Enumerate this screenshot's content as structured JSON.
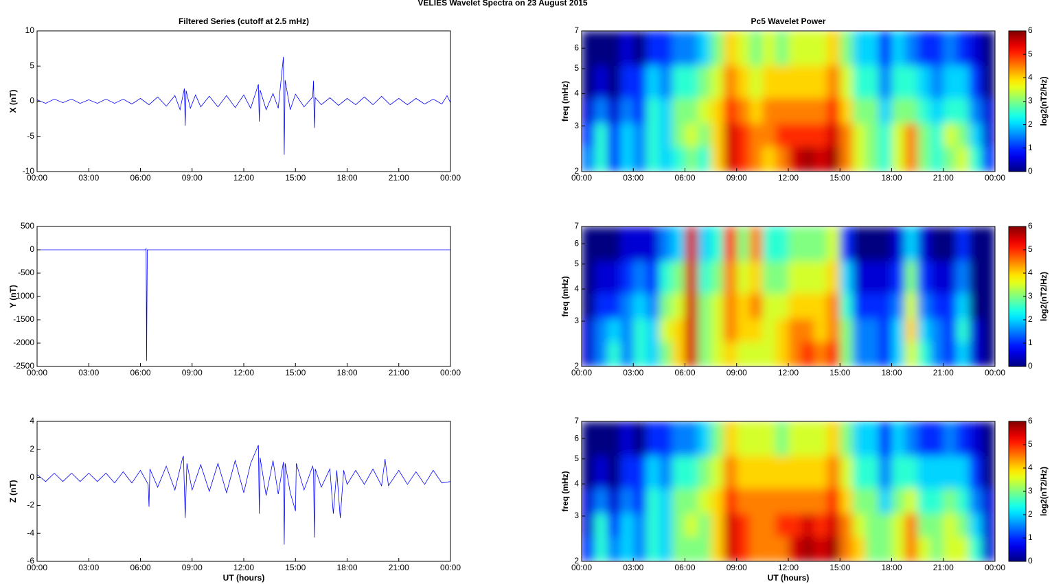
{
  "title": "VELIES Wavelet Spectra on 23 August    2015",
  "chart_data": [
    {
      "type": "line",
      "title": "Filtered Series (cutoff at 2.5 mHz)",
      "y_label": "X (nT)",
      "color": "#0000ff",
      "x": [
        0,
        0.5,
        1,
        1.5,
        2,
        2.5,
        3,
        3.5,
        4,
        4.5,
        5,
        5.5,
        6,
        6.5,
        7,
        7.5,
        8,
        8.3,
        8.55,
        8.6,
        8.65,
        8.9,
        9.2,
        9.5,
        10,
        10.5,
        11,
        11.5,
        12,
        12.4,
        12.85,
        12.9,
        12.95,
        13.3,
        13.7,
        14,
        14.3,
        14.35,
        14.4,
        14.7,
        15,
        15.5,
        16,
        16.05,
        16.1,
        16.15,
        16.5,
        17,
        17.5,
        18,
        18.5,
        19,
        19.5,
        20,
        20.5,
        21,
        21.5,
        22,
        22.5,
        23,
        23.5,
        23.8,
        24
      ],
      "values": [
        0.2,
        -0.3,
        0.3,
        -0.2,
        0.3,
        -0.3,
        0.2,
        -0.3,
        0.3,
        -0.3,
        0.3,
        -0.4,
        0.4,
        -0.5,
        0.6,
        -0.7,
        0.8,
        -1.2,
        1.8,
        -3.5,
        1.5,
        -1.0,
        0.9,
        -0.8,
        0.7,
        -0.8,
        0.8,
        -0.9,
        0.9,
        -1.0,
        2.4,
        -2.9,
        1.6,
        -1.2,
        1.1,
        -1.0,
        6.3,
        -7.6,
        3.0,
        -1.2,
        1.0,
        -0.8,
        0.6,
        2.9,
        -3.8,
        0.5,
        -0.5,
        0.5,
        -0.6,
        0.4,
        -0.5,
        0.6,
        -0.5,
        0.7,
        -0.5,
        0.4,
        -0.5,
        0.4,
        -0.4,
        0.3,
        -0.4,
        0.8,
        -0.2
      ],
      "xlim": [
        0,
        24
      ],
      "xticks": [
        {
          "value": 0,
          "label": "00:00"
        },
        {
          "value": 3,
          "label": "03:00"
        },
        {
          "value": 6,
          "label": "06:00"
        },
        {
          "value": 9,
          "label": "09:00"
        },
        {
          "value": 12,
          "label": "12:00"
        },
        {
          "value": 15,
          "label": "15:00"
        },
        {
          "value": 18,
          "label": "18:00"
        },
        {
          "value": 21,
          "label": "21:00"
        },
        {
          "value": 24,
          "label": "00:00"
        }
      ],
      "ylim": [
        -10,
        10
      ],
      "yticks": [
        -10,
        -5,
        0,
        5,
        10
      ]
    },
    {
      "type": "heatmap",
      "title": "Pc5 Wavelet Power",
      "y_label": "freq (mHz)",
      "colorbar_label": "log2(nT2/Hz)",
      "colormap": "jet",
      "ylog": true,
      "x": [
        0.375,
        1.125,
        1.875,
        2.625,
        3.375,
        4.125,
        4.875,
        5.625,
        6.375,
        7.125,
        7.875,
        8.625,
        9.375,
        10.125,
        10.875,
        11.625,
        12.375,
        13.125,
        13.875,
        14.625,
        15.375,
        16.125,
        16.875,
        17.625,
        18.375,
        19.125,
        19.875,
        20.625,
        21.375,
        22.125,
        22.875,
        23.625
      ],
      "y": [
        2.25,
        2.75,
        3.4,
        4.3,
        6.0
      ],
      "z": [
        [
          1.5,
          2.5,
          1,
          2,
          1.5,
          2.5,
          2,
          2.5,
          3,
          2.5,
          4,
          5.5,
          5,
          4.5,
          4,
          4.5,
          5.5,
          5.8,
          5.5,
          5.8,
          4.5,
          3.5,
          3,
          2.5,
          3.5,
          4.5,
          3,
          2.5,
          3,
          3.5,
          2.5,
          1
        ],
        [
          1,
          2.5,
          1,
          2,
          1.5,
          2.5,
          2,
          3,
          3.5,
          3,
          4,
          5.5,
          5,
          4.5,
          4.5,
          5,
          5,
          5,
          5,
          5.5,
          4.5,
          3.5,
          3,
          2.5,
          3.5,
          4.5,
          3,
          2.5,
          3.5,
          3,
          2,
          0.5
        ],
        [
          0.5,
          1.5,
          0.5,
          1.5,
          1,
          2.5,
          2,
          3,
          3,
          3.5,
          4,
          5,
          4.5,
          4,
          4.5,
          4.5,
          4.5,
          4.5,
          4.5,
          5,
          4,
          3,
          3,
          2,
          3,
          3,
          2.5,
          2,
          2.5,
          2.5,
          1.5,
          0.5
        ],
        [
          0,
          0.5,
          0,
          1,
          1,
          2,
          1.5,
          2.5,
          2.5,
          3,
          3.5,
          4.5,
          4,
          3.5,
          4,
          4,
          4,
          4,
          4,
          4.5,
          3.5,
          2.5,
          2.5,
          1.5,
          2.5,
          2.5,
          2,
          1.5,
          2,
          2,
          1,
          0
        ],
        [
          0,
          0,
          0,
          0.5,
          0,
          1,
          1,
          1.5,
          1.5,
          2,
          3,
          4,
          3.5,
          3,
          3.5,
          3,
          3.5,
          3.5,
          3.5,
          4,
          3,
          2,
          2,
          1,
          2,
          1.5,
          1,
          1,
          1.5,
          1,
          0.5,
          0
        ]
      ],
      "xlim": [
        0,
        24
      ],
      "xticks": [
        {
          "value": 0,
          "label": "00:00"
        },
        {
          "value": 3,
          "label": "03:00"
        },
        {
          "value": 6,
          "label": "06:00"
        },
        {
          "value": 9,
          "label": "09:00"
        },
        {
          "value": 12,
          "label": "12:00"
        },
        {
          "value": 15,
          "label": "15:00"
        },
        {
          "value": 18,
          "label": "18:00"
        },
        {
          "value": 21,
          "label": "21:00"
        },
        {
          "value": 24,
          "label": "00:00"
        }
      ],
      "ylim": [
        2,
        7
      ],
      "yticks": [
        2,
        3,
        4,
        5,
        6,
        7
      ],
      "zlim": [
        0,
        6
      ],
      "zticks": [
        0,
        1,
        2,
        3,
        4,
        5,
        6
      ]
    },
    {
      "type": "line",
      "y_label": "Y (nT)",
      "color": "#0000ff",
      "x": [
        0,
        3,
        6,
        6.3,
        6.33,
        6.36,
        6.4,
        9,
        12,
        15,
        18,
        21,
        24
      ],
      "values": [
        0,
        0,
        0,
        0,
        20,
        -2380,
        0,
        0,
        0,
        0,
        0,
        0,
        0
      ],
      "xlim": [
        0,
        24
      ],
      "xticks": [
        {
          "value": 0,
          "label": "00:00"
        },
        {
          "value": 3,
          "label": "03:00"
        },
        {
          "value": 6,
          "label": "06:00"
        },
        {
          "value": 9,
          "label": "09:00"
        },
        {
          "value": 12,
          "label": "12:00"
        },
        {
          "value": 15,
          "label": "15:00"
        },
        {
          "value": 18,
          "label": "18:00"
        },
        {
          "value": 21,
          "label": "21:00"
        },
        {
          "value": 24,
          "label": "00:00"
        }
      ],
      "ylim": [
        -2500,
        500
      ],
      "yticks": [
        -2500,
        -2000,
        -1500,
        -1000,
        -500,
        0,
        500
      ]
    },
    {
      "type": "heatmap",
      "y_label": "freq (mHz)",
      "colorbar_label": "log2(nT2/Hz)",
      "colormap": "jet",
      "ylog": true,
      "x": [
        0.375,
        1.125,
        1.875,
        2.625,
        3.375,
        4.125,
        4.875,
        5.625,
        6.375,
        7.125,
        7.875,
        8.625,
        9.375,
        10.125,
        10.875,
        11.625,
        12.375,
        13.125,
        13.875,
        14.625,
        15.375,
        16.125,
        16.875,
        17.625,
        18.375,
        19.125,
        19.875,
        20.625,
        21.375,
        22.125,
        22.875,
        23.625
      ],
      "y": [
        2.25,
        2.75,
        3.4,
        4.3,
        6.0
      ],
      "z": [
        [
          0.5,
          1.5,
          2.5,
          1.5,
          2.5,
          2,
          3,
          4,
          5.5,
          3,
          3.5,
          4,
          3.5,
          3.5,
          3.5,
          4,
          4.5,
          5,
          4.5,
          5,
          3,
          1.5,
          1.5,
          1,
          2,
          3.5,
          2.5,
          1.5,
          1,
          2,
          0.5,
          0
        ],
        [
          0.5,
          1.5,
          2,
          1.5,
          2.5,
          2,
          3.5,
          4,
          5.5,
          3,
          3.5,
          4.5,
          4,
          4,
          3.5,
          4,
          4.5,
          4.5,
          4,
          4.5,
          3,
          1.5,
          1.5,
          1,
          2,
          4,
          2,
          1.5,
          1,
          2.5,
          0.5,
          0
        ],
        [
          0,
          1,
          1,
          1.5,
          2,
          1.5,
          3,
          3.5,
          5.5,
          3,
          3.5,
          4.5,
          4,
          4.5,
          3.5,
          3.5,
          4,
          4,
          4,
          4.5,
          2.5,
          1,
          1,
          1,
          1.5,
          3.5,
          1.5,
          1,
          1,
          2,
          0,
          0
        ],
        [
          0,
          0.5,
          0.5,
          1,
          1.5,
          1,
          2.5,
          3,
          5.5,
          2.5,
          3,
          4.5,
          3.5,
          4,
          3,
          3,
          3.5,
          3.5,
          3.5,
          4,
          2,
          0.5,
          0.5,
          0.5,
          1,
          3,
          1,
          0.5,
          0.5,
          1.5,
          0,
          0
        ],
        [
          0,
          0,
          0,
          0.5,
          0.5,
          0.5,
          1.5,
          2,
          5.5,
          2,
          2.5,
          5,
          3,
          4.5,
          2.5,
          2.5,
          3,
          3,
          3,
          3.5,
          1,
          0,
          0,
          0,
          0.5,
          2,
          0.5,
          0,
          0,
          1,
          0,
          0
        ]
      ],
      "xlim": [
        0,
        24
      ],
      "xticks": [
        {
          "value": 0,
          "label": "00:00"
        },
        {
          "value": 3,
          "label": "03:00"
        },
        {
          "value": 6,
          "label": "06:00"
        },
        {
          "value": 9,
          "label": "09:00"
        },
        {
          "value": 12,
          "label": "12:00"
        },
        {
          "value": 15,
          "label": "15:00"
        },
        {
          "value": 18,
          "label": "18:00"
        },
        {
          "value": 21,
          "label": "21:00"
        },
        {
          "value": 24,
          "label": "00:00"
        }
      ],
      "ylim": [
        2,
        7
      ],
      "yticks": [
        2,
        3,
        4,
        5,
        6,
        7
      ],
      "zlim": [
        0,
        6
      ],
      "zticks": [
        0,
        1,
        2,
        3,
        4,
        5,
        6
      ]
    },
    {
      "type": "line",
      "y_label": "Z (nT)",
      "x_label": "UT (hours)",
      "color": "#0000ff",
      "x": [
        0,
        0.5,
        1,
        1.5,
        2,
        2.5,
        3,
        3.5,
        4,
        4.5,
        5,
        5.5,
        6,
        6.45,
        6.5,
        6.55,
        7,
        7.5,
        8,
        8.45,
        8.5,
        8.6,
        8.7,
        9,
        9.5,
        10,
        10.5,
        11,
        11.5,
        12,
        12.4,
        12.85,
        12.9,
        12.95,
        13.3,
        13.7,
        14,
        14.3,
        14.35,
        14.4,
        14.7,
        15,
        15.05,
        15.5,
        16,
        16.05,
        16.1,
        16.15,
        16.5,
        17,
        17.2,
        17.4,
        17.6,
        17.8,
        18,
        18.5,
        19,
        19.5,
        20,
        20.2,
        20.4,
        21,
        21.5,
        22,
        22.5,
        23,
        23.5,
        24
      ],
      "values": [
        0.2,
        -0.3,
        0.3,
        -0.3,
        0.3,
        -0.3,
        0.3,
        -0.3,
        0.3,
        -0.4,
        0.4,
        -0.4,
        0.5,
        -0.5,
        -2.1,
        0.6,
        -0.7,
        0.8,
        -0.9,
        1.4,
        1.5,
        -2.9,
        1.0,
        -0.9,
        0.9,
        -1.0,
        1.0,
        -1.1,
        1.2,
        -1.1,
        1.0,
        2.3,
        -2.6,
        1.4,
        -1.3,
        1.2,
        -1.2,
        1.1,
        -4.8,
        1.0,
        -1.1,
        -2.4,
        1.0,
        -0.9,
        0.8,
        0.5,
        -4.3,
        0.6,
        -0.7,
        0.6,
        -2.6,
        0.5,
        -2.9,
        0.5,
        -0.5,
        0.5,
        -0.5,
        0.6,
        -0.6,
        1.3,
        -0.6,
        0.5,
        -0.5,
        0.4,
        -0.5,
        0.5,
        -0.4,
        -0.3
      ],
      "xlim": [
        0,
        24
      ],
      "xticks": [
        {
          "value": 0,
          "label": "00:00"
        },
        {
          "value": 3,
          "label": "03:00"
        },
        {
          "value": 6,
          "label": "06:00"
        },
        {
          "value": 9,
          "label": "09:00"
        },
        {
          "value": 12,
          "label": "12:00"
        },
        {
          "value": 15,
          "label": "15:00"
        },
        {
          "value": 18,
          "label": "18:00"
        },
        {
          "value": 21,
          "label": "21:00"
        },
        {
          "value": 24,
          "label": "00:00"
        }
      ],
      "ylim": [
        -6,
        4
      ],
      "yticks": [
        -6,
        -4,
        -2,
        0,
        2,
        4
      ]
    },
    {
      "type": "heatmap",
      "y_label": "freq (mHz)",
      "x_label": "UT (hours)",
      "colorbar_label": "log2(nT2/Hz)",
      "colormap": "jet",
      "ylog": true,
      "x": [
        0.375,
        1.125,
        1.875,
        2.625,
        3.375,
        4.125,
        4.875,
        5.625,
        6.375,
        7.125,
        7.875,
        8.625,
        9.375,
        10.125,
        10.875,
        11.625,
        12.375,
        13.125,
        13.875,
        14.625,
        15.375,
        16.125,
        16.875,
        17.625,
        18.375,
        19.125,
        19.875,
        20.625,
        21.375,
        22.125,
        22.875,
        23.625
      ],
      "y": [
        2.25,
        2.75,
        3.4,
        4.3,
        6.0
      ],
      "z": [
        [
          1,
          2.5,
          1.5,
          2,
          1.5,
          2.5,
          2,
          3,
          3,
          3,
          4,
          5.5,
          5,
          4.5,
          4.5,
          4.5,
          5.5,
          5.8,
          5.5,
          5.8,
          4.5,
          4,
          3,
          3,
          3.5,
          4.5,
          3.5,
          3,
          3.5,
          3.5,
          2.5,
          0.5
        ],
        [
          0.5,
          2.5,
          1,
          2,
          1.5,
          2.5,
          2,
          3,
          3.5,
          3,
          4,
          5.5,
          5,
          4.5,
          4.5,
          5,
          5,
          5.5,
          5,
          5.5,
          4.5,
          3.5,
          3,
          3,
          3.5,
          4.5,
          3,
          3,
          3.5,
          3,
          2,
          0.5
        ],
        [
          0.5,
          1.5,
          0.5,
          1.5,
          1,
          2.5,
          2,
          3,
          3,
          3.5,
          4,
          5,
          4.5,
          4.5,
          4.5,
          4.5,
          4.5,
          4.5,
          4.5,
          5,
          4,
          3,
          3,
          2,
          3,
          3.5,
          2.5,
          2.5,
          3,
          2.5,
          1.5,
          0.5
        ],
        [
          0,
          0.5,
          0,
          1,
          1,
          2,
          1.5,
          2.5,
          2.5,
          3,
          3.5,
          4.5,
          4,
          4,
          4,
          4,
          4,
          4,
          4,
          4.5,
          3.5,
          2.5,
          2.5,
          1.5,
          2.5,
          2.5,
          2,
          2,
          2,
          2,
          1,
          0
        ],
        [
          0,
          0,
          0,
          0.5,
          0,
          1,
          1,
          1.5,
          1.5,
          2,
          3,
          4,
          3.5,
          3.5,
          3.5,
          3,
          3.5,
          3.5,
          3.5,
          4,
          3,
          2,
          2,
          1,
          2,
          1.5,
          1,
          1,
          1.5,
          1,
          0.5,
          0
        ]
      ],
      "xlim": [
        0,
        24
      ],
      "xticks": [
        {
          "value": 0,
          "label": "00:00"
        },
        {
          "value": 3,
          "label": "03:00"
        },
        {
          "value": 6,
          "label": "06:00"
        },
        {
          "value": 9,
          "label": "09:00"
        },
        {
          "value": 12,
          "label": "12:00"
        },
        {
          "value": 15,
          "label": "15:00"
        },
        {
          "value": 18,
          "label": "18:00"
        },
        {
          "value": 21,
          "label": "21:00"
        },
        {
          "value": 24,
          "label": "00:00"
        }
      ],
      "ylim": [
        2,
        7
      ],
      "yticks": [
        2,
        3,
        4,
        5,
        6,
        7
      ],
      "zlim": [
        0,
        6
      ],
      "zticks": [
        0,
        1,
        2,
        3,
        4,
        5,
        6
      ]
    }
  ]
}
